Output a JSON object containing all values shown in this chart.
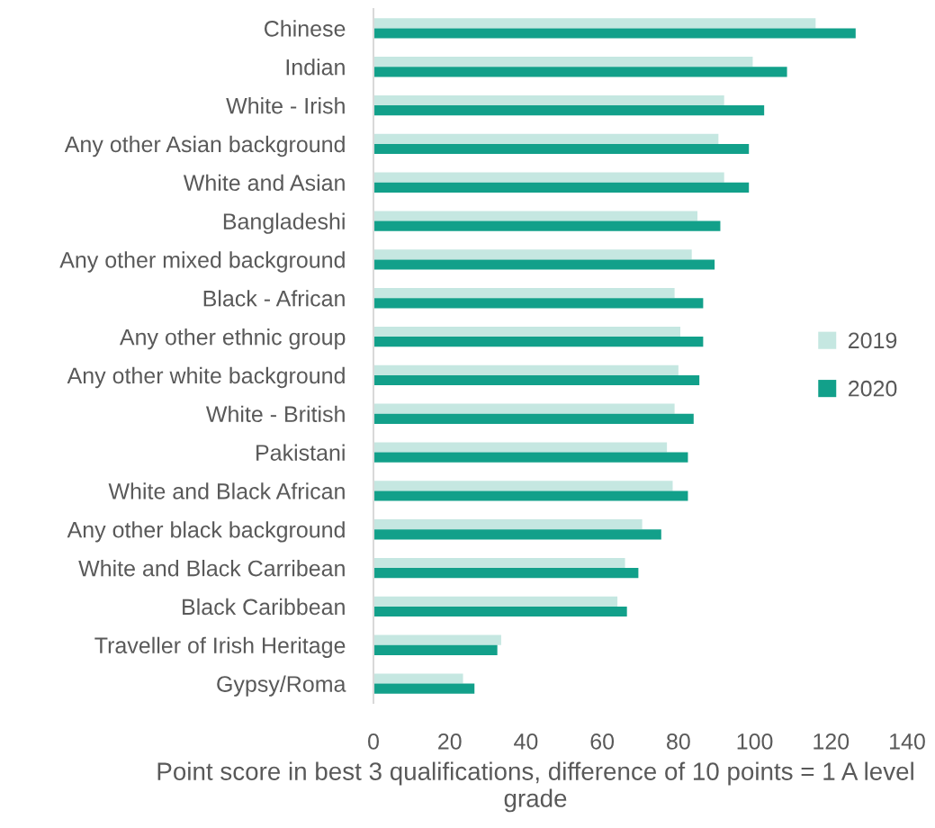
{
  "chart_data": {
    "type": "bar",
    "orientation": "horizontal",
    "categories": [
      "Chinese",
      "Indian",
      "White - Irish",
      "Any other Asian background",
      "White and Asian",
      "Bangladeshi",
      "Any other mixed background",
      "Black - African",
      "Any other ethnic group",
      "Any other white background",
      "White - British",
      "Pakistani",
      "White and Black African",
      "Any other black background",
      "White and Black Carribean",
      "Black Caribbean",
      "Traveller of Irish Heritage",
      "Gypsy/Roma"
    ],
    "series": [
      {
        "name": "2019",
        "color": "#c5e7e1",
        "values": [
          116,
          99.5,
          92,
          90.5,
          92,
          85,
          83.5,
          79,
          80.5,
          80,
          79,
          77,
          78.5,
          70.5,
          66,
          64,
          33.5,
          23.5
        ]
      },
      {
        "name": "2020",
        "color": "#12a08a",
        "values": [
          126.5,
          108.5,
          102.5,
          98.5,
          98.5,
          91,
          89.5,
          86.5,
          86.5,
          85.5,
          84,
          82.5,
          82.5,
          75.5,
          69.5,
          66.5,
          32.5,
          26.5
        ]
      }
    ],
    "xlabel": "Point score in best 3 qualifications, difference of 10 points = 1 A level grade",
    "xlim": [
      0,
      140
    ],
    "xticks": [
      0,
      20,
      40,
      60,
      80,
      100,
      120,
      140
    ],
    "legend": "right"
  }
}
